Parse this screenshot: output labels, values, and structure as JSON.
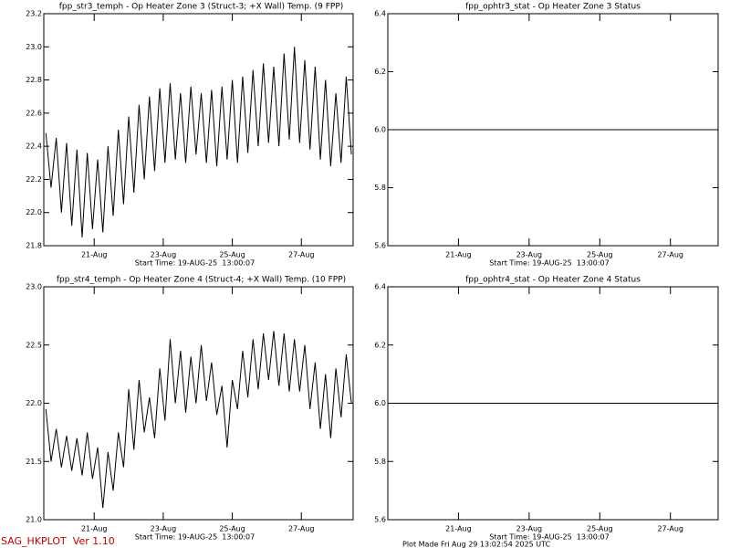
{
  "chart_data": [
    {
      "type": "line",
      "title": "fpp_str3_temph - Op Heater Zone 3 (Struct-3; +X Wall) Temp. (9 FPP)",
      "subtitle": "Start Time: 19-AUG-25  13:00:07",
      "color": "#000000",
      "xlim": [
        19.54,
        28.5
      ],
      "xticks": [
        {
          "value": 21,
          "label": "21-Aug"
        },
        {
          "value": 23,
          "label": "23-Aug"
        },
        {
          "value": 25,
          "label": "25-Aug"
        },
        {
          "value": 27,
          "label": "27-Aug"
        }
      ],
      "ylim": [
        21.8,
        23.2
      ],
      "yticks": [
        21.8,
        {
          "value": 22,
          "label": "22.0"
        },
        22.2,
        22.4,
        22.6,
        22.8,
        {
          "value": 23,
          "label": "23.0"
        },
        23.2
      ],
      "x": [
        19.6,
        19.75,
        19.9,
        20.05,
        20.2,
        20.35,
        20.5,
        20.65,
        20.8,
        20.95,
        21.1,
        21.25,
        21.4,
        21.55,
        21.7,
        21.85,
        22,
        22.15,
        22.3,
        22.45,
        22.6,
        22.75,
        22.9,
        23.05,
        23.2,
        23.35,
        23.5,
        23.65,
        23.8,
        23.95,
        24.1,
        24.25,
        24.4,
        24.55,
        24.7,
        24.85,
        25,
        25.15,
        25.3,
        25.45,
        25.6,
        25.75,
        25.9,
        26.05,
        26.2,
        26.35,
        26.5,
        26.65,
        26.8,
        26.95,
        27.1,
        27.25,
        27.4,
        27.55,
        27.7,
        27.85,
        28,
        28.15,
        28.3,
        28.45
      ],
      "values": [
        22.48,
        22.15,
        22.45,
        22.0,
        22.42,
        21.92,
        22.38,
        21.85,
        22.36,
        21.9,
        22.32,
        21.88,
        22.4,
        21.98,
        22.5,
        22.05,
        22.58,
        22.12,
        22.65,
        22.2,
        22.7,
        22.25,
        22.75,
        22.3,
        22.78,
        22.32,
        22.72,
        22.3,
        22.76,
        22.35,
        22.72,
        22.3,
        22.74,
        22.28,
        22.76,
        22.32,
        22.8,
        22.3,
        22.82,
        22.36,
        22.86,
        22.4,
        22.9,
        22.42,
        22.88,
        22.4,
        22.96,
        22.44,
        23.0,
        22.42,
        22.92,
        22.38,
        22.88,
        22.32,
        22.8,
        22.28,
        22.72,
        22.3,
        22.82,
        22.35
      ]
    },
    {
      "type": "line",
      "title": "fpp_ophtr3_stat - Op Heater Zone 3 Status",
      "subtitle": "Start Time: 19-AUG-25  13:00:07",
      "color": "#000000",
      "xlim": [
        19.0,
        28.35
      ],
      "xticks": [
        {
          "value": 21,
          "label": "21-Aug"
        },
        {
          "value": 23,
          "label": "23-Aug"
        },
        {
          "value": 25,
          "label": "25-Aug"
        },
        {
          "value": 27,
          "label": "27-Aug"
        }
      ],
      "ylim": [
        5.6,
        6.4
      ],
      "yticks": [
        5.6,
        5.8,
        {
          "value": 6,
          "label": "6.0"
        },
        6.2,
        6.4
      ],
      "x": [
        19.0,
        28.35
      ],
      "values": [
        6,
        6
      ]
    },
    {
      "type": "line",
      "title": "fpp_str4_temph - Op Heater Zone 4 (Struct-4; +X Wall) Temp. (10 FPP)",
      "subtitle": "Start Time: 19-AUG-25  13:00:07",
      "color": "#000000",
      "xlim": [
        19.54,
        28.5
      ],
      "xticks": [
        {
          "value": 21,
          "label": "21-Aug"
        },
        {
          "value": 23,
          "label": "23-Aug"
        },
        {
          "value": 25,
          "label": "25-Aug"
        },
        {
          "value": 27,
          "label": "27-Aug"
        }
      ],
      "ylim": [
        21.0,
        23.0
      ],
      "yticks": [
        {
          "value": 21,
          "label": "21.0"
        },
        21.5,
        {
          "value": 22,
          "label": "22.0"
        },
        22.5,
        {
          "value": 23,
          "label": "23.0"
        }
      ],
      "x": [
        19.6,
        19.75,
        19.9,
        20.05,
        20.2,
        20.35,
        20.5,
        20.65,
        20.8,
        20.95,
        21.1,
        21.25,
        21.4,
        21.55,
        21.7,
        21.85,
        22,
        22.15,
        22.3,
        22.45,
        22.6,
        22.75,
        22.9,
        23.05,
        23.2,
        23.35,
        23.5,
        23.65,
        23.8,
        23.95,
        24.1,
        24.25,
        24.4,
        24.55,
        24.7,
        24.85,
        25,
        25.15,
        25.3,
        25.45,
        25.6,
        25.75,
        25.9,
        26.05,
        26.2,
        26.35,
        26.5,
        26.65,
        26.8,
        26.95,
        27.1,
        27.25,
        27.4,
        27.55,
        27.7,
        27.85,
        28,
        28.15,
        28.3,
        28.45
      ],
      "values": [
        21.95,
        21.5,
        21.78,
        21.45,
        21.72,
        21.42,
        21.7,
        21.38,
        21.75,
        21.35,
        21.62,
        21.1,
        21.58,
        21.25,
        21.75,
        21.45,
        22.12,
        21.6,
        22.2,
        21.75,
        22.05,
        21.7,
        22.3,
        21.85,
        22.55,
        22.0,
        22.45,
        21.92,
        22.4,
        22.0,
        22.5,
        22.02,
        22.35,
        21.9,
        22.15,
        21.62,
        22.2,
        21.95,
        22.45,
        22.05,
        22.55,
        22.12,
        22.6,
        22.2,
        22.62,
        22.15,
        22.6,
        22.1,
        22.55,
        22.1,
        22.5,
        21.95,
        22.35,
        21.78,
        22.25,
        21.7,
        22.3,
        21.88,
        22.42,
        22.0
      ]
    },
    {
      "type": "line",
      "title": "fpp_ophtr4_stat - Op Heater Zone 4 Status",
      "subtitle": "Start Time: 19-AUG-25  13:00:07",
      "color": "#000000",
      "xlim": [
        19.0,
        28.35
      ],
      "xticks": [
        {
          "value": 21,
          "label": "21-Aug"
        },
        {
          "value": 23,
          "label": "23-Aug"
        },
        {
          "value": 25,
          "label": "25-Aug"
        },
        {
          "value": 27,
          "label": "27-Aug"
        }
      ],
      "ylim": [
        5.6,
        6.4
      ],
      "yticks": [
        5.6,
        5.8,
        {
          "value": 6,
          "label": "6.0"
        },
        6.2,
        6.4
      ],
      "x": [
        19.0,
        28.35
      ],
      "values": [
        6,
        6
      ]
    }
  ],
  "footer": {
    "left": "SAG_HKPLOT  Ver 1.10",
    "right": "Plot Made Fri Aug 29 13:02:54 2025 UTC"
  }
}
